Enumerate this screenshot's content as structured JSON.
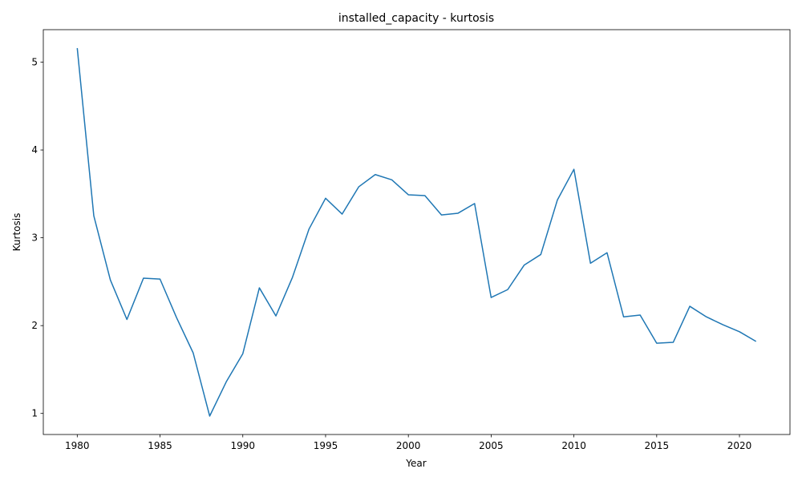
{
  "chart_data": {
    "type": "line",
    "title": "installed_capacity - kurtosis",
    "xlabel": "Year",
    "ylabel": "Kurtosis",
    "xlim": [
      1977.95,
      2023.05
    ],
    "ylim": [
      0.76,
      5.37
    ],
    "xticks": [
      1980,
      1985,
      1990,
      1995,
      2000,
      2005,
      2010,
      2015,
      2020
    ],
    "yticks": [
      1,
      2,
      3,
      4,
      5
    ],
    "grid": false,
    "line_color": "#1f77b4",
    "series": [
      {
        "x": [
          1980,
          1981,
          1982,
          1983,
          1984,
          1985,
          1986,
          1987,
          1988,
          1989,
          1990,
          1991,
          1992,
          1993,
          1994,
          1995,
          1996,
          1997,
          1998,
          1999,
          2000,
          2001,
          2002,
          2003,
          2004,
          2005,
          2006,
          2007,
          2008,
          2009,
          2010,
          2011,
          2012,
          2013,
          2014,
          2015,
          2016,
          2017,
          2018,
          2019,
          2020,
          2021
        ],
        "values": [
          5.16,
          3.25,
          2.52,
          2.07,
          2.54,
          2.53,
          2.09,
          1.69,
          0.97,
          1.36,
          1.68,
          2.43,
          2.11,
          2.55,
          3.1,
          3.45,
          3.27,
          3.58,
          3.72,
          3.66,
          3.49,
          3.48,
          3.26,
          3.28,
          3.39,
          2.32,
          2.41,
          2.69,
          2.81,
          3.43,
          3.78,
          2.71,
          2.83,
          2.1,
          2.12,
          1.8,
          1.81,
          2.22,
          2.1,
          2.01,
          1.93,
          1.82
        ]
      }
    ]
  }
}
